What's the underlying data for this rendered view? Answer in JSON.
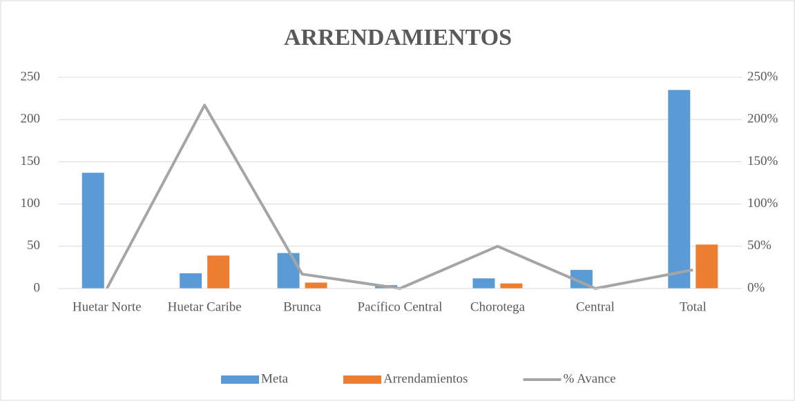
{
  "chart_data": {
    "type": "bar_line",
    "title": "ARRENDAMIENTOS",
    "categories": [
      "Huetar Norte",
      "Huetar Caribe",
      "Brunca",
      "Pacífico Central",
      "Chorotega",
      "Central",
      "Total"
    ],
    "series": [
      {
        "name": "Meta",
        "color": "#5b9bd5",
        "type": "bar",
        "values": [
          137,
          18,
          42,
          4,
          12,
          22,
          235
        ]
      },
      {
        "name": "Arrendamientos",
        "color": "#ed7d31",
        "type": "bar",
        "values": [
          0,
          39,
          7,
          0,
          6,
          0,
          52
        ]
      },
      {
        "name": "% Avance",
        "color": "#a5a5a5",
        "type": "line",
        "axis": "y2",
        "values": [
          0,
          217,
          17,
          0,
          50,
          0,
          22
        ]
      }
    ],
    "ylim": [
      0,
      250
    ],
    "yticks": [
      0,
      50,
      100,
      150,
      200,
      250
    ],
    "y2lim": [
      0,
      250
    ],
    "y2ticks": [
      {
        "value": 0,
        "label": "0%"
      },
      {
        "value": 50,
        "label": "50%"
      },
      {
        "value": 100,
        "label": "100%"
      },
      {
        "value": 150,
        "label": "150%"
      },
      {
        "value": 200,
        "label": "200%"
      },
      {
        "value": 250,
        "label": "250%"
      }
    ],
    "grid": true,
    "legend": "bottom"
  }
}
